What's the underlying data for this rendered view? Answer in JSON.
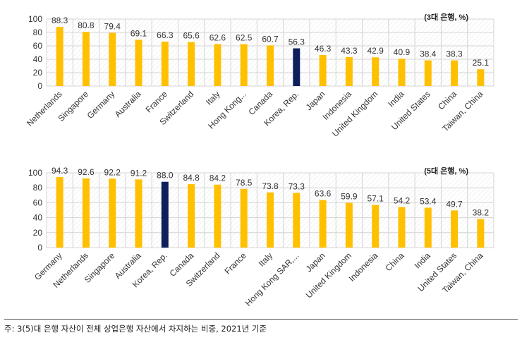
{
  "chart_data": [
    {
      "type": "bar",
      "unit_label": "(3대 은행, %)",
      "ylim": [
        0,
        100
      ],
      "yticks": [
        0,
        20,
        40,
        60,
        80,
        100
      ],
      "grid": true,
      "categories": [
        "Netherlands",
        "Singapore",
        "Germany",
        "Australia",
        "France",
        "Switzerland",
        "Italy",
        "Hong Kong...",
        "Canada",
        "Korea, Rep.",
        "Japan",
        "Indonesia",
        "United Kingdom",
        "India",
        "United States",
        "China",
        "Taiwan, China"
      ],
      "values": [
        88.3,
        80.8,
        79.4,
        69.1,
        66.3,
        65.6,
        62.6,
        62.5,
        60.7,
        56.3,
        46.3,
        43.3,
        42.9,
        40.9,
        38.4,
        38.3,
        25.1
      ],
      "value_labels": [
        "88.3",
        "80.8",
        "79.4",
        "69.1",
        "66.3",
        "65.6",
        "62.6",
        "62.5",
        "60.7",
        "56.3",
        "46.3",
        "43.3",
        "42.9",
        "40.9",
        "38.4",
        "38.3",
        "25.1"
      ],
      "highlight": "Korea, Rep.",
      "bar_color": "#FFC000",
      "highlight_color": "#0F1F5C"
    },
    {
      "type": "bar",
      "unit_label": "(5대 은행, %)",
      "ylim": [
        0,
        100
      ],
      "yticks": [
        0,
        20,
        40,
        60,
        80,
        100
      ],
      "grid": true,
      "categories": [
        "Germany",
        "Netherlands",
        "Singapore",
        "Australia",
        "Korea, Rep.",
        "Canada",
        "Switzerland",
        "France",
        "Italy",
        "Hong Kong SAR,...",
        "Japan",
        "United Kingdom",
        "Indonesia",
        "China",
        "India",
        "United States",
        "Taiwan, China"
      ],
      "values": [
        94.3,
        92.6,
        92.2,
        91.2,
        88.0,
        84.8,
        84.2,
        78.5,
        73.8,
        73.3,
        63.6,
        59.9,
        57.1,
        54.2,
        53.4,
        49.7,
        38.2
      ],
      "value_labels": [
        "94.3",
        "92.6",
        "92.2",
        "91.2",
        "88.0",
        "84.8",
        "84.2",
        "78.5",
        "73.8",
        "73.3",
        "63.6",
        "59.9",
        "57.1",
        "54.2",
        "53.4",
        "49.7",
        "38.2"
      ],
      "highlight": "Korea, Rep.",
      "bar_color": "#FFC000",
      "highlight_color": "#0F1F5C"
    }
  ],
  "footnote": "주: 3(5)대 은행 자산이 전체 상업은행 자산에서 차지하는 비중, 2021년 기준"
}
